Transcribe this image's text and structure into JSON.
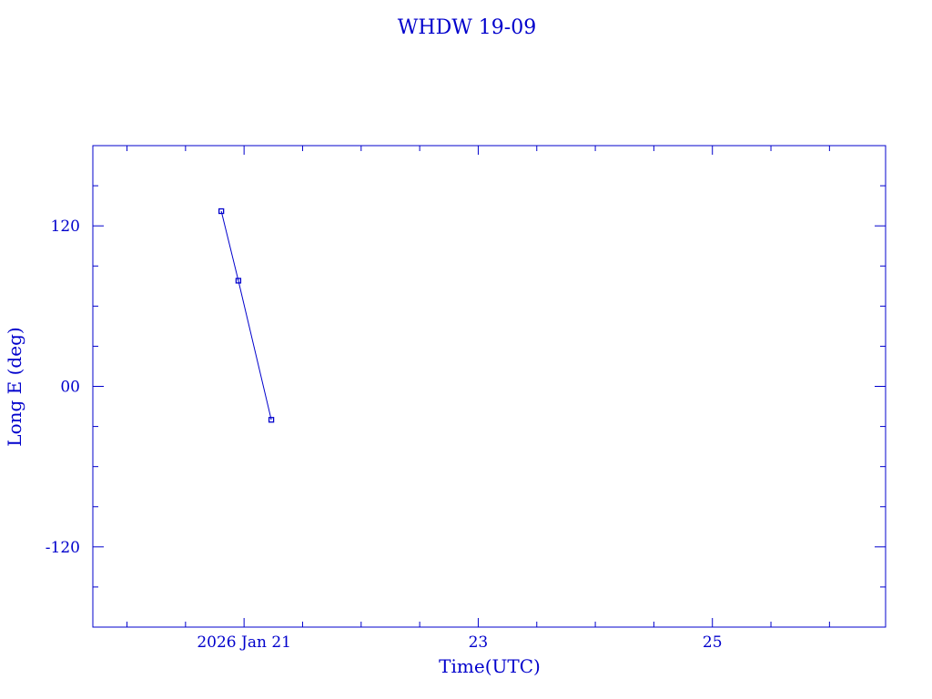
{
  "chart_data": {
    "type": "line",
    "title": "WHDW 19-09",
    "xlabel": "Time(UTC)",
    "ylabel": "Long E (deg)",
    "xlim": [
      "2026-01-19T17:00:00Z",
      "2026-01-26T11:30:00Z"
    ],
    "ylim": [
      -180,
      180
    ],
    "x_ticks": [
      {
        "value": "2026-01-21T00:00:00Z",
        "label": "2026 Jan 21"
      },
      {
        "value": "2026-01-23T00:00:00Z",
        "label": "23"
      },
      {
        "value": "2026-01-25T00:00:00Z",
        "label": "25"
      }
    ],
    "x_minor_step_hours": 12,
    "y_ticks": [
      {
        "value": 120,
        "label": "120"
      },
      {
        "value": 0,
        "label": "00"
      },
      {
        "value": -120,
        "label": "-120"
      }
    ],
    "y_minor_step": 30,
    "grid": false,
    "marker": "square",
    "color": "#0000cc",
    "series": [
      {
        "x": [
          "2026-01-20T19:20:00Z",
          "2026-01-20T22:50:00Z",
          "2026-01-21T05:35:00Z"
        ],
        "y": [
          131,
          79,
          -25
        ]
      }
    ]
  }
}
